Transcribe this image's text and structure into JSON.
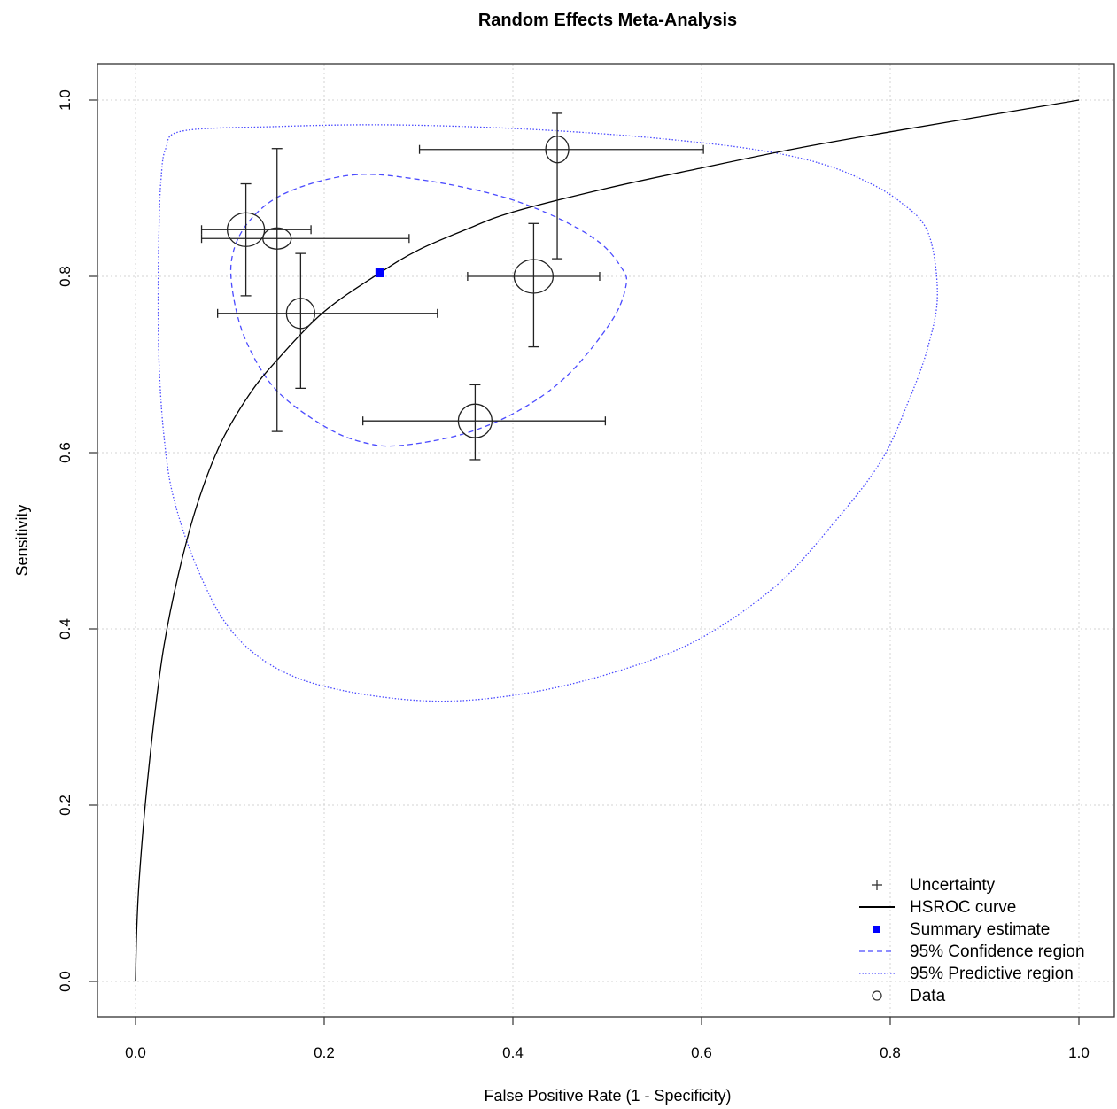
{
  "chart_data": {
    "type": "scatter",
    "title": "Random Effects Meta-Analysis",
    "xlabel": "False Positive Rate (1 - Specificity)",
    "ylabel": "Sensitivity",
    "xlim": [
      0,
      1
    ],
    "ylim": [
      0,
      1
    ],
    "xticks": [
      "0.0",
      "0.2",
      "0.4",
      "0.6",
      "0.8",
      "1.0"
    ],
    "yticks": [
      "0.0",
      "0.2",
      "0.4",
      "0.6",
      "0.8",
      "1.0"
    ],
    "grid": true,
    "legend_position": "bottom-right",
    "legend": [
      {
        "label": "Uncertainty",
        "symbol": "plus"
      },
      {
        "label": "HSROC curve",
        "symbol": "solid-line"
      },
      {
        "label": "Summary estimate",
        "symbol": "blue-square"
      },
      {
        "label": "95% Confidence region",
        "symbol": "dashed-line"
      },
      {
        "label": "95% Predictive region",
        "symbol": "dotted-line"
      },
      {
        "label": "Data",
        "symbol": "circle"
      }
    ],
    "colors": {
      "data": "#000000",
      "summary": "#0000ff",
      "regions": "#4b4bff",
      "grid": "#d3d3d3"
    },
    "studies": [
      {
        "fpr": 0.117,
        "sens": 0.853,
        "fpr_ci": [
          0.07,
          0.186
        ],
        "sens_ci": [
          0.778,
          0.905
        ]
      },
      {
        "fpr": 0.15,
        "sens": 0.843,
        "fpr_ci": [
          0.07,
          0.29
        ],
        "sens_ci": [
          0.624,
          0.945
        ]
      },
      {
        "fpr": 0.175,
        "sens": 0.758,
        "fpr_ci": [
          0.087,
          0.32
        ],
        "sens_ci": [
          0.673,
          0.826
        ]
      },
      {
        "fpr": 0.36,
        "sens": 0.636,
        "fpr_ci": [
          0.241,
          0.498
        ],
        "sens_ci": [
          0.592,
          0.677
        ]
      },
      {
        "fpr": 0.422,
        "sens": 0.8,
        "fpr_ci": [
          0.352,
          0.492
        ],
        "sens_ci": [
          0.72,
          0.86
        ]
      },
      {
        "fpr": 0.447,
        "sens": 0.944,
        "fpr_ci": [
          0.301,
          0.602
        ],
        "sens_ci": [
          0.82,
          0.985
        ]
      }
    ],
    "summary_estimate": {
      "fpr": 0.259,
      "sens": 0.804
    },
    "hsroc_curve": [
      [
        0.0,
        0.0
      ],
      [
        0.001,
        0.05
      ],
      [
        0.003,
        0.1
      ],
      [
        0.007,
        0.16
      ],
      [
        0.012,
        0.22
      ],
      [
        0.02,
        0.3
      ],
      [
        0.03,
        0.38
      ],
      [
        0.045,
        0.46
      ],
      [
        0.065,
        0.54
      ],
      [
        0.09,
        0.61
      ],
      [
        0.12,
        0.665
      ],
      [
        0.15,
        0.705
      ],
      [
        0.2,
        0.76
      ],
      [
        0.259,
        0.804
      ],
      [
        0.3,
        0.83
      ],
      [
        0.35,
        0.853
      ],
      [
        0.4,
        0.873
      ],
      [
        0.5,
        0.9
      ],
      [
        0.6,
        0.923
      ],
      [
        0.7,
        0.945
      ],
      [
        0.8,
        0.964
      ],
      [
        0.9,
        0.982
      ],
      [
        1.0,
        1.0
      ]
    ],
    "confidence_region": [
      [
        0.23,
        0.915
      ],
      [
        0.3,
        0.91
      ],
      [
        0.38,
        0.893
      ],
      [
        0.44,
        0.87
      ],
      [
        0.49,
        0.84
      ],
      [
        0.515,
        0.81
      ],
      [
        0.52,
        0.79
      ],
      [
        0.505,
        0.75
      ],
      [
        0.46,
        0.69
      ],
      [
        0.41,
        0.65
      ],
      [
        0.35,
        0.622
      ],
      [
        0.28,
        0.608
      ],
      [
        0.24,
        0.612
      ],
      [
        0.2,
        0.63
      ],
      [
        0.15,
        0.67
      ],
      [
        0.12,
        0.72
      ],
      [
        0.105,
        0.77
      ],
      [
        0.102,
        0.82
      ],
      [
        0.12,
        0.862
      ],
      [
        0.16,
        0.895
      ],
      [
        0.23,
        0.915
      ]
    ],
    "predictive_region": [
      [
        0.05,
        0.965
      ],
      [
        0.15,
        0.97
      ],
      [
        0.25,
        0.972
      ],
      [
        0.35,
        0.97
      ],
      [
        0.45,
        0.965
      ],
      [
        0.55,
        0.957
      ],
      [
        0.65,
        0.945
      ],
      [
        0.72,
        0.93
      ],
      [
        0.77,
        0.91
      ],
      [
        0.81,
        0.885
      ],
      [
        0.84,
        0.85
      ],
      [
        0.85,
        0.78
      ],
      [
        0.84,
        0.72
      ],
      [
        0.82,
        0.66
      ],
      [
        0.79,
        0.59
      ],
      [
        0.74,
        0.52
      ],
      [
        0.68,
        0.45
      ],
      [
        0.6,
        0.39
      ],
      [
        0.52,
        0.355
      ],
      [
        0.42,
        0.328
      ],
      [
        0.32,
        0.318
      ],
      [
        0.22,
        0.33
      ],
      [
        0.15,
        0.355
      ],
      [
        0.1,
        0.4
      ],
      [
        0.065,
        0.47
      ],
      [
        0.04,
        0.55
      ],
      [
        0.03,
        0.62
      ],
      [
        0.025,
        0.7
      ],
      [
        0.024,
        0.78
      ],
      [
        0.025,
        0.86
      ],
      [
        0.027,
        0.91
      ],
      [
        0.032,
        0.945
      ],
      [
        0.05,
        0.965
      ]
    ]
  }
}
